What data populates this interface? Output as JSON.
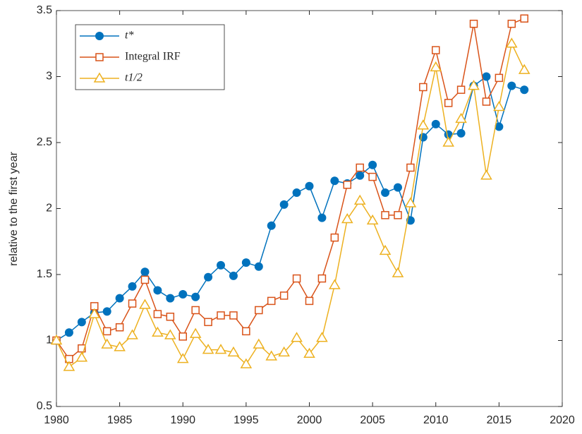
{
  "chart_data": {
    "type": "line",
    "ylabel": "relative to the first year",
    "x": [
      1980,
      1981,
      1982,
      1983,
      1984,
      1985,
      1986,
      1987,
      1988,
      1989,
      1990,
      1991,
      1992,
      1993,
      1994,
      1995,
      1996,
      1997,
      1998,
      1999,
      2000,
      2001,
      2002,
      2003,
      2004,
      2005,
      2006,
      2007,
      2008,
      2009,
      2010,
      2011,
      2012,
      2013,
      2014,
      2015,
      2016,
      2017
    ],
    "series": [
      {
        "name": "t*",
        "color": "#0072BD",
        "marker": "circle",
        "values": [
          1.0,
          1.06,
          1.14,
          1.21,
          1.22,
          1.32,
          1.41,
          1.52,
          1.38,
          1.32,
          1.35,
          1.33,
          1.48,
          1.57,
          1.49,
          1.59,
          1.56,
          1.87,
          2.03,
          2.12,
          2.17,
          1.93,
          2.21,
          2.19,
          2.25,
          2.33,
          2.12,
          2.16,
          1.91,
          2.54,
          2.64,
          2.56,
          2.57,
          2.93,
          3.0,
          2.62,
          2.93,
          2.9
        ]
      },
      {
        "name": "Integral IRF",
        "color": "#D95319",
        "marker": "square",
        "values": [
          1.0,
          0.86,
          0.94,
          1.26,
          1.07,
          1.1,
          1.28,
          1.46,
          1.2,
          1.18,
          1.03,
          1.23,
          1.14,
          1.19,
          1.19,
          1.07,
          1.23,
          1.3,
          1.34,
          1.47,
          1.3,
          1.47,
          1.78,
          2.18,
          2.31,
          2.24,
          1.95,
          1.95,
          2.31,
          2.92,
          3.2,
          2.8,
          2.9,
          3.4,
          2.81,
          2.99,
          3.4,
          3.44
        ]
      },
      {
        "name": "t1/2",
        "color": "#EDB120",
        "marker": "triangle",
        "values": [
          1.0,
          0.8,
          0.87,
          1.2,
          0.97,
          0.95,
          1.04,
          1.27,
          1.06,
          1.04,
          0.86,
          1.05,
          0.93,
          0.93,
          0.91,
          0.82,
          0.97,
          0.88,
          0.91,
          1.02,
          0.9,
          1.02,
          1.42,
          1.92,
          2.06,
          1.91,
          1.68,
          1.51,
          2.04,
          2.63,
          3.07,
          2.5,
          2.68,
          2.93,
          2.25,
          2.77,
          3.25,
          3.05
        ]
      }
    ],
    "xlim": [
      1980,
      2020
    ],
    "xticks": [
      1980,
      1985,
      1990,
      1995,
      2000,
      2005,
      2010,
      2015,
      2020
    ],
    "ylim": [
      0.5,
      3.5
    ],
    "yticks": [
      0.5,
      1,
      1.5,
      2,
      2.5,
      3,
      3.5
    ],
    "grid": false,
    "legend": "upper left"
  }
}
